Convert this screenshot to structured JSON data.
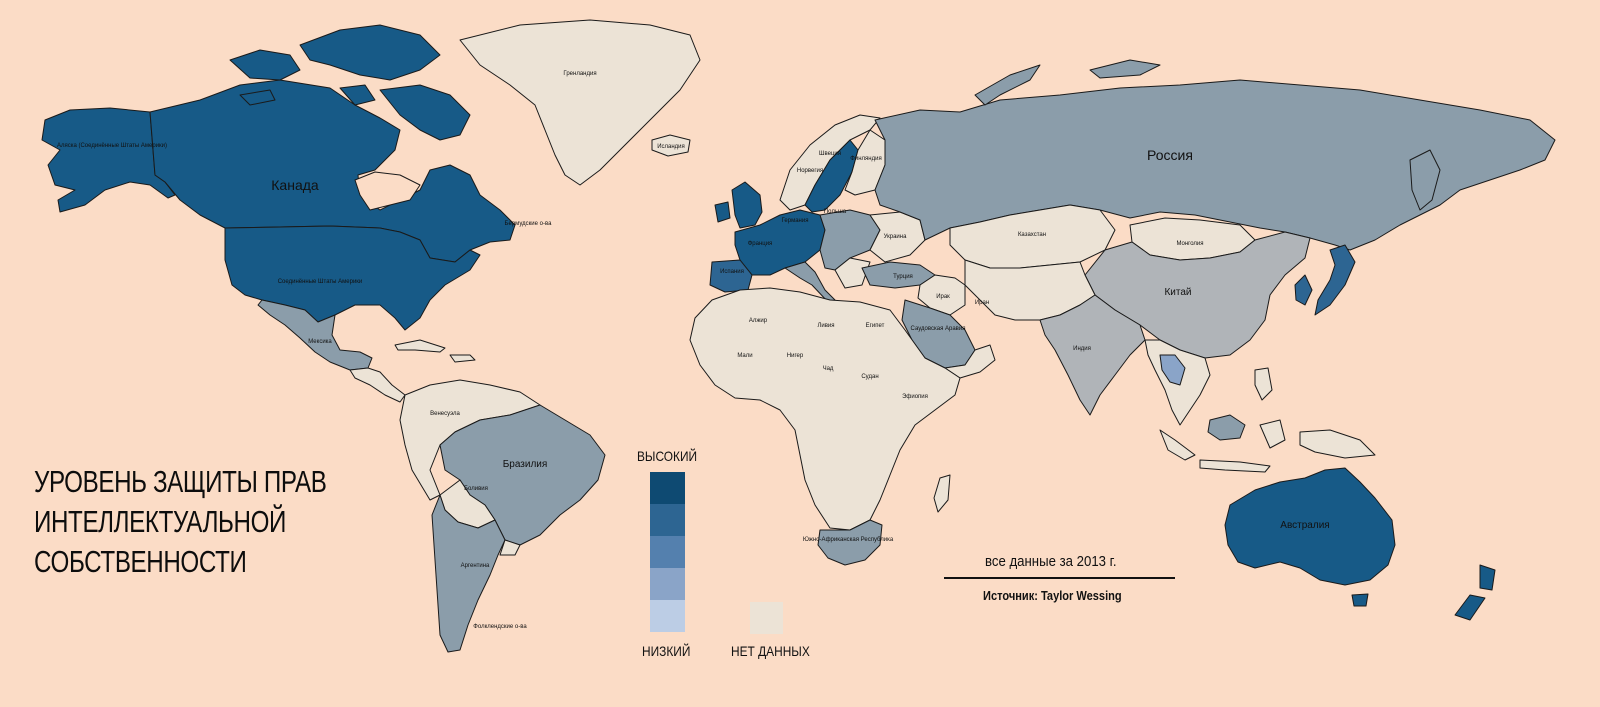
{
  "title_lines": [
    "УРОВЕНЬ ЗАЩИТЫ ПРАВ",
    "ИНТЕЛЛЕКТУАЛЬНОЙ",
    "СОБСТВЕННОСТИ"
  ],
  "legend": {
    "high_label": "ВЫСОКИЙ",
    "low_label": "НИЗКИЙ",
    "no_data_label": "НЕТ ДАННЫХ",
    "scale_colors": [
      "#0e4a72",
      "#2d6592",
      "#5480ae",
      "#8aa4c8",
      "#bccde5"
    ],
    "no_data_color": "#ece3d6"
  },
  "note": "все данные за 2013 г.",
  "source": "Источник: Taylor Wessing",
  "colors": {
    "background": "#fbdcc6",
    "high": "#175a87",
    "mid_high": "#2d6592",
    "medium": "#8b9daa",
    "light": "#b0b4b8",
    "no_data": "#ece3d6",
    "border": "#1a1a1a"
  },
  "countries": {
    "canada": {
      "name": "Канада",
      "level": "high"
    },
    "usa": {
      "name": "Соединённые Штаты Америки",
      "level": "high"
    },
    "alaska": {
      "name": "Аляска (Соединённые Штаты Америки)",
      "level": "high"
    },
    "greenland": {
      "name": "Гренландия",
      "level": "no-data"
    },
    "mexico": {
      "name": "Мексика",
      "level": "medium"
    },
    "brazil": {
      "name": "Бразилия",
      "level": "medium"
    },
    "argentina": {
      "name": "Аргентина",
      "level": "medium"
    },
    "bolivia": {
      "name": "Боливия",
      "level": "no-data"
    },
    "venezuela": {
      "name": "Венесуэла",
      "level": "no-data"
    },
    "falklands": {
      "name": "Фолклендские о-ва",
      "level": "no-data"
    },
    "russia": {
      "name": "Россия",
      "level": "medium"
    },
    "china": {
      "name": "Китай",
      "level": "light"
    },
    "india": {
      "name": "Индия",
      "level": "light"
    },
    "mongolia": {
      "name": "Монголия",
      "level": "no-data"
    },
    "kazakhstan": {
      "name": "Казахстан",
      "level": "no-data"
    },
    "iran": {
      "name": "Иран",
      "level": "no-data"
    },
    "iraq": {
      "name": "Ирак",
      "level": "no-data"
    },
    "saudi": {
      "name": "Саудовская Аравия",
      "level": "medium"
    },
    "turkey": {
      "name": "Турция",
      "level": "medium"
    },
    "egypt": {
      "name": "Египет",
      "level": "no-data"
    },
    "libya": {
      "name": "Ливия",
      "level": "no-data"
    },
    "algeria": {
      "name": "Алжир",
      "level": "no-data"
    },
    "mali": {
      "name": "Мали",
      "level": "no-data"
    },
    "niger": {
      "name": "Нигер",
      "level": "no-data"
    },
    "chad": {
      "name": "Чад",
      "level": "no-data"
    },
    "sudan": {
      "name": "Судан",
      "level": "no-data"
    },
    "ethiopia": {
      "name": "Эфиопия",
      "level": "no-data"
    },
    "south_africa": {
      "name": "Южно-Африканская Республика",
      "level": "medium"
    },
    "australia": {
      "name": "Австралия",
      "level": "high"
    },
    "spain": {
      "name": "Испания",
      "level": "mid-high"
    },
    "france": {
      "name": "Франция",
      "level": "high"
    },
    "germany": {
      "name": "Германия",
      "level": "high"
    },
    "poland": {
      "name": "Польша",
      "level": "medium"
    },
    "sweden": {
      "name": "Швеция",
      "level": "high"
    },
    "norway": {
      "name": "Норвегия",
      "level": "no-data"
    },
    "finland": {
      "name": "Финляндия",
      "level": "no-data"
    },
    "ukraine": {
      "name": "Украина",
      "level": "no-data"
    },
    "iceland": {
      "name": "Исландия",
      "level": "no-data"
    },
    "bermuda": {
      "name": "Бермудские о-ва",
      "level": "no-data"
    }
  }
}
